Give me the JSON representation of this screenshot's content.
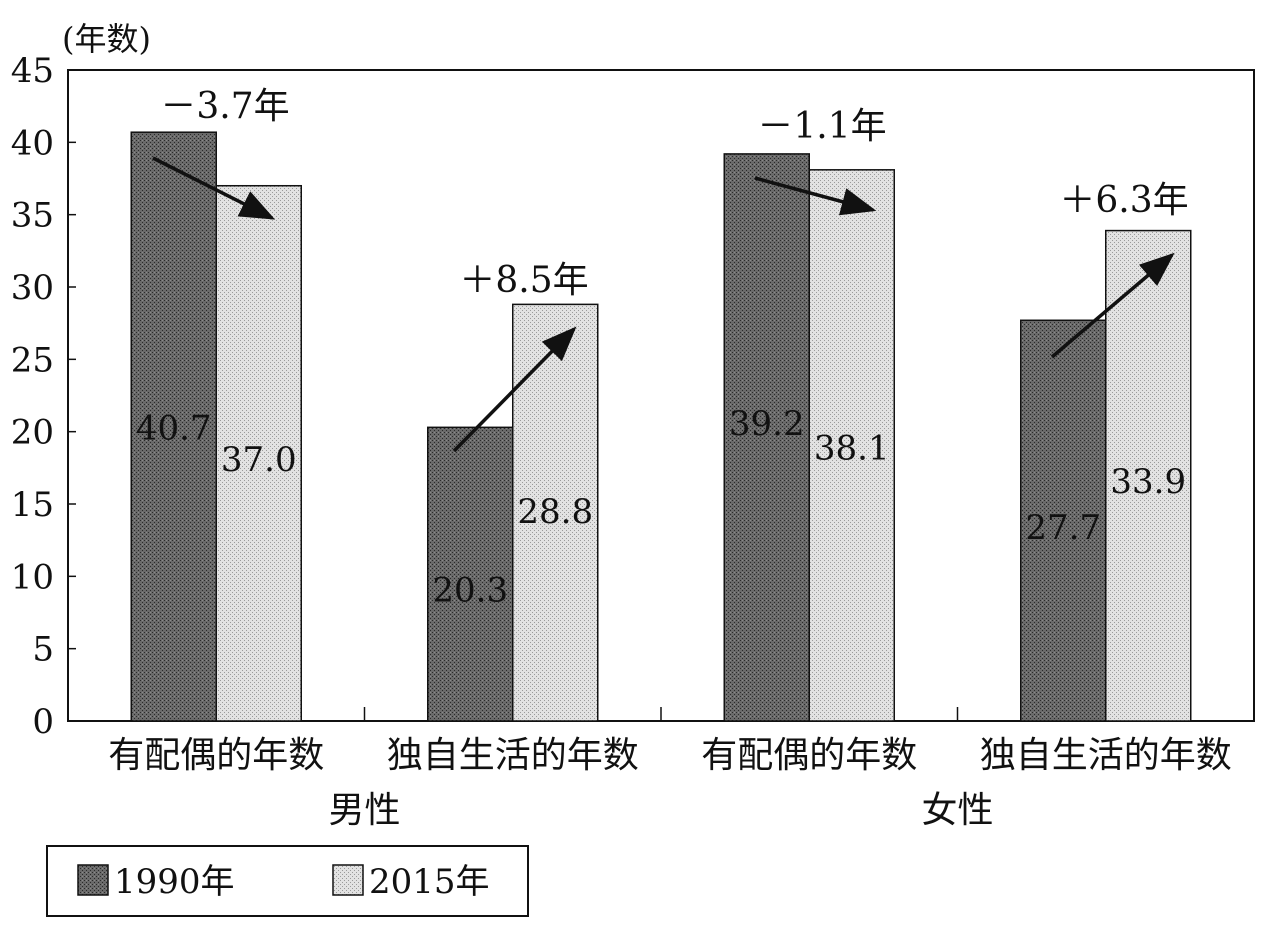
{
  "chart_data": {
    "type": "bar",
    "ylabel": "(年数)",
    "ylim": [
      0,
      45
    ],
    "yticks": [
      0,
      5,
      10,
      15,
      20,
      25,
      30,
      35,
      40,
      45
    ],
    "grid": false,
    "legend_position": "bottom-left",
    "groups": [
      {
        "name": "男性",
        "categories": [
          "有配偶的年数",
          "独自生活的年数"
        ],
        "changes": [
          "－3.7年",
          "＋8.5年"
        ]
      },
      {
        "name": "女性",
        "categories": [
          "有配偶的年数",
          "独自生活的年数"
        ],
        "changes": [
          "－1.1年",
          "＋6.3年"
        ]
      }
    ],
    "categories": [
      "有配偶的年数",
      "独自生活的年数",
      "有配偶的年数",
      "独自生活的年数"
    ],
    "series": [
      {
        "name": "1990年",
        "values": [
          40.7,
          20.3,
          39.2,
          27.7
        ],
        "labels": [
          "40.7",
          "20.3",
          "39.2",
          "27.7"
        ],
        "color": "#5a5a5a"
      },
      {
        "name": "2015年",
        "values": [
          37.0,
          28.8,
          38.1,
          33.9
        ],
        "labels": [
          "37.0",
          "28.8",
          "38.1",
          "33.9"
        ],
        "color": "#d2d2d2"
      }
    ]
  }
}
